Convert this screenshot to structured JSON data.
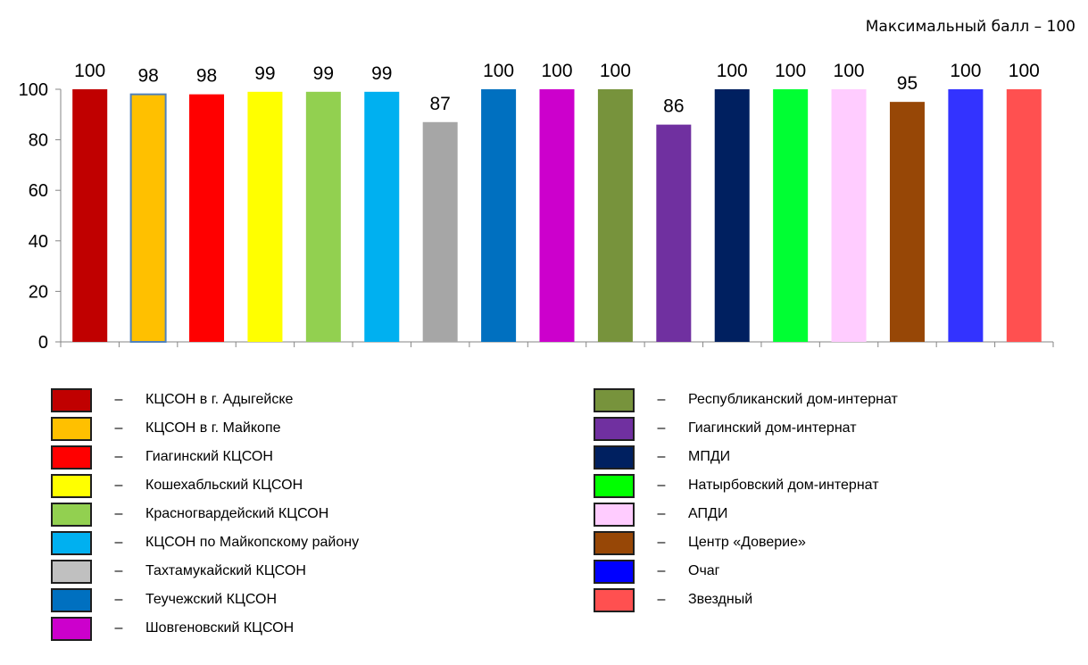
{
  "note": "Максимальный балл – 100",
  "legend_dash": "–",
  "chart_data": {
    "type": "bar",
    "ylim": [
      0,
      100
    ],
    "yticks": [
      0,
      20,
      40,
      60,
      80,
      100
    ],
    "grid": false,
    "legend_placement": "bottom",
    "series": [
      {
        "name": "КЦСОН в г. Адыгейске",
        "value": 100,
        "color": "#c00000"
      },
      {
        "name": "КЦСОН в г. Майкопе",
        "value": 98,
        "color": "#ffc000",
        "outline": "#4f81bd"
      },
      {
        "name": "Гиагинский КЦСОН",
        "value": 98,
        "color": "#ff0000"
      },
      {
        "name": "Кошехабльский КЦСОН",
        "value": 99,
        "color": "#ffff00"
      },
      {
        "name": "Красногвардейский КЦСОН",
        "value": 99,
        "color": "#92d050"
      },
      {
        "name": "КЦСОН по Майкопскому району",
        "value": 99,
        "color": "#00b0f0"
      },
      {
        "name": "Тахтамукайский КЦСОН",
        "value": 87,
        "color": "#a6a6a6"
      },
      {
        "name": "Теучежский КЦСОН",
        "value": 100,
        "color": "#0070c0"
      },
      {
        "name": "Шовгеновский КЦСОН",
        "value": 100,
        "color": "#cc00cc"
      },
      {
        "name": "Республиканский дом-интернат",
        "value": 100,
        "color": "#77933c"
      },
      {
        "name": "Гиагинский дом-интернат",
        "value": 86,
        "color": "#7030a0"
      },
      {
        "name": "МПДИ",
        "value": 100,
        "color": "#002060"
      },
      {
        "name": "Натырбовский дом-интернат",
        "value": 100,
        "color": "#00ff33"
      },
      {
        "name": "АПДИ",
        "value": 100,
        "color": "#ffccff"
      },
      {
        "name": "Центр «Доверие»",
        "value": 95,
        "color": "#974706"
      },
      {
        "name": "Очаг",
        "value": 100,
        "color": "#3333ff"
      },
      {
        "name": "Звездный",
        "value": 100,
        "color": "#ff5050"
      }
    ],
    "legend_swatch_colors": [
      "#c00000",
      "#ffc000",
      "#ff0000",
      "#ffff00",
      "#92d050",
      "#00b0f0",
      "#c0c0c0",
      "#0070c0",
      "#cc00cc",
      "#77933c",
      "#7030a0",
      "#002060",
      "#00ff00",
      "#ffccff",
      "#974706",
      "#0000ff",
      "#ff5050"
    ]
  }
}
